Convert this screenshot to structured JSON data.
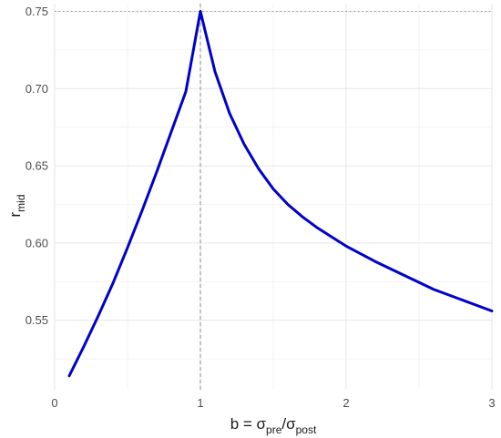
{
  "chart_data": {
    "type": "line",
    "title": "",
    "xlabel": "b = σpre/σpost",
    "xlabel_parts": {
      "b_eq": "b = σ",
      "pre": "pre",
      "slash": "/σ",
      "post": "post"
    },
    "ylabel": "rmid",
    "ylabel_parts": {
      "main": "r",
      "sub": "mid"
    },
    "xlim": [
      0,
      3
    ],
    "ylim": [
      0.505,
      0.755
    ],
    "x_ticks": [
      0,
      1,
      2,
      3
    ],
    "x_tick_labels": [
      "0",
      "1",
      "2",
      "3"
    ],
    "y_ticks": [
      0.55,
      0.6,
      0.65,
      0.7,
      0.75
    ],
    "y_tick_labels": [
      "0.55",
      "0.60",
      "0.65",
      "0.70",
      "0.75"
    ],
    "grid": true,
    "series": [
      {
        "color": "#0000cc",
        "x": [
          0.1,
          0.2,
          0.3,
          0.4,
          0.5,
          0.6,
          0.7,
          0.8,
          0.9,
          1.0,
          1.1,
          1.2,
          1.3,
          1.4,
          1.5,
          1.6,
          1.7,
          1.8,
          1.9,
          2.0,
          2.2,
          2.4,
          2.6,
          2.8,
          3.0
        ],
        "y": [
          0.514,
          0.533,
          0.553,
          0.574,
          0.597,
          0.621,
          0.646,
          0.672,
          0.698,
          0.75,
          0.711,
          0.684,
          0.664,
          0.648,
          0.635,
          0.625,
          0.617,
          0.61,
          0.604,
          0.598,
          0.588,
          0.579,
          0.57,
          0.563,
          0.556
        ]
      }
    ],
    "reference_lines": [
      {
        "orientation": "horizontal",
        "value": 0.75,
        "style": "dotted",
        "color": "#999999"
      },
      {
        "orientation": "vertical",
        "value": 1.0,
        "style": "dashed",
        "color": "#888888"
      }
    ]
  }
}
